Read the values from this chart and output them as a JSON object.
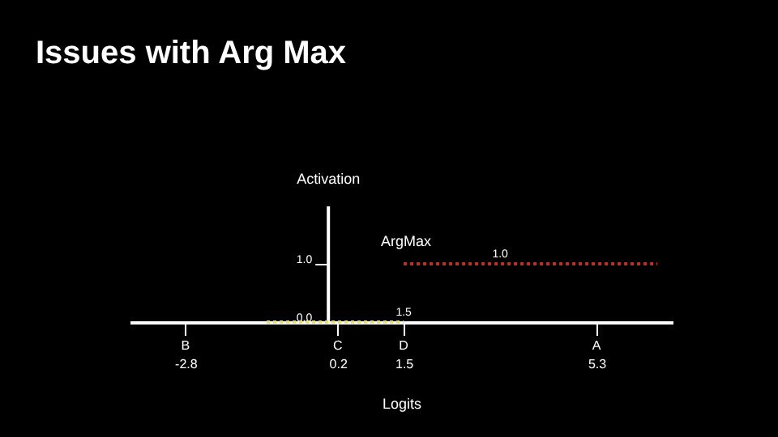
{
  "chart_data": {
    "type": "line",
    "title": "Issues with Arg Max",
    "xlabel": "Logits",
    "ylabel": "Activation",
    "xlim": [
      -3.9,
      6.8
    ],
    "xticks": [
      -2.8,
      0.2,
      1.5,
      5.3
    ],
    "ylim": [
      0,
      2
    ],
    "yticks": [
      {
        "value": 0,
        "label": "0.0"
      },
      {
        "value": 1,
        "label": "1.0"
      }
    ],
    "series": [
      {
        "color": "#e8e070",
        "x": [
          -1.2,
          1.5
        ],
        "values": [
          0,
          0
        ]
      },
      {
        "color": "#c0302a",
        "x": [
          1.5,
          6.5
        ],
        "values": [
          1,
          1
        ]
      }
    ],
    "line_style": "dotted",
    "grid": false,
    "legend": false,
    "marker": "none",
    "annotations": [
      "ArgMax",
      {
        "text": "1.5",
        "x": 1.5,
        "y": 0
      },
      {
        "text": "1.0",
        "x": 3.4,
        "y": 1
      },
      "B",
      "C",
      "D",
      "A"
    ]
  }
}
